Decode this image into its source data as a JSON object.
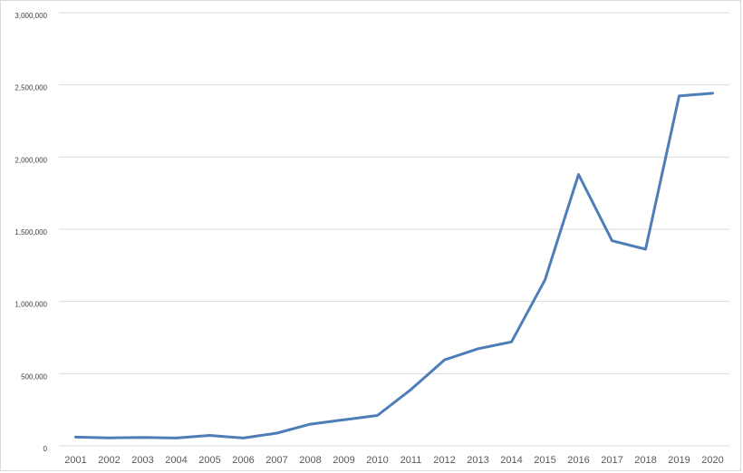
{
  "chart_data": {
    "type": "line",
    "title": "",
    "xlabel": "",
    "ylabel": "",
    "categories": [
      "2001",
      "2002",
      "2003",
      "2004",
      "2005",
      "2006",
      "2007",
      "2008",
      "2009",
      "2010",
      "2011",
      "2012",
      "2013",
      "2014",
      "2015",
      "2016",
      "2017",
      "2018",
      "2019",
      "2020"
    ],
    "series": [
      {
        "name": "",
        "color": "#4f7db8",
        "values": [
          60000,
          55000,
          58000,
          54000,
          72000,
          54000,
          88000,
          150000,
          180000,
          210000,
          390000,
          595000,
          672000,
          720000,
          1150000,
          1880000,
          1420000,
          1362000,
          2423000,
          2442000
        ]
      }
    ],
    "ylim": [
      0,
      3000000
    ],
    "yticks": [
      0,
      500000,
      1000000,
      1500000,
      2000000,
      2500000,
      3000000
    ],
    "ytick_labels": [
      "0",
      "500,000",
      "1,000,000",
      "1,500,000",
      "2,000,000",
      "2,500,000",
      "3,000,000"
    ],
    "grid": true,
    "legend": "none"
  },
  "colors": {
    "line": "#4f7db8",
    "grid": "#d9d9d9",
    "axis_text": "#595959"
  }
}
